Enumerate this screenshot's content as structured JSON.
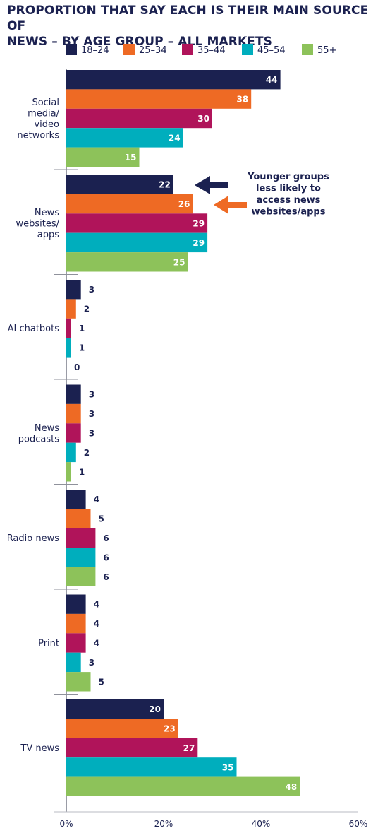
{
  "title": {
    "line1": "PROPORTION THAT SAY EACH IS THEIR MAIN SOURCE OF",
    "line2": "NEWS – BY AGE GROUP – ALL MARKETS"
  },
  "chart_data": {
    "type": "bar",
    "orientation": "horizontal",
    "categories": [
      [
        "Social",
        "media/",
        "video",
        "networks"
      ],
      [
        "News",
        "websites/",
        "apps"
      ],
      [
        "AI chatbots"
      ],
      [
        "News",
        "podcasts"
      ],
      [
        "Radio news"
      ],
      [
        "Print"
      ],
      [
        "TV news"
      ]
    ],
    "series": [
      {
        "name": "18–24",
        "color": "#1b2150",
        "values": [
          44,
          22,
          3,
          3,
          4,
          4,
          20
        ]
      },
      {
        "name": "25–34",
        "color": "#ee6a24",
        "values": [
          38,
          26,
          2,
          3,
          5,
          4,
          23
        ]
      },
      {
        "name": "35–44",
        "color": "#b0145a",
        "values": [
          30,
          29,
          1,
          3,
          6,
          4,
          27
        ]
      },
      {
        "name": "45–54",
        "color": "#00aebd",
        "values": [
          24,
          29,
          1,
          2,
          6,
          3,
          35
        ]
      },
      {
        "name": "55+",
        "color": "#8dc25a",
        "values": [
          15,
          25,
          0,
          1,
          6,
          5,
          48
        ]
      }
    ],
    "xlim": [
      0,
      60
    ],
    "xticks": [
      "0%",
      "20%",
      "40%",
      "60%"
    ],
    "xtick_values": [
      0,
      20,
      40,
      60
    ],
    "legend_position": "top",
    "grid": false,
    "annotation": {
      "text": [
        "Younger groups",
        "less likely to",
        "access news",
        "websites/apps"
      ],
      "arrow_colors": [
        "#1b2150",
        "#ee6a24"
      ]
    }
  }
}
